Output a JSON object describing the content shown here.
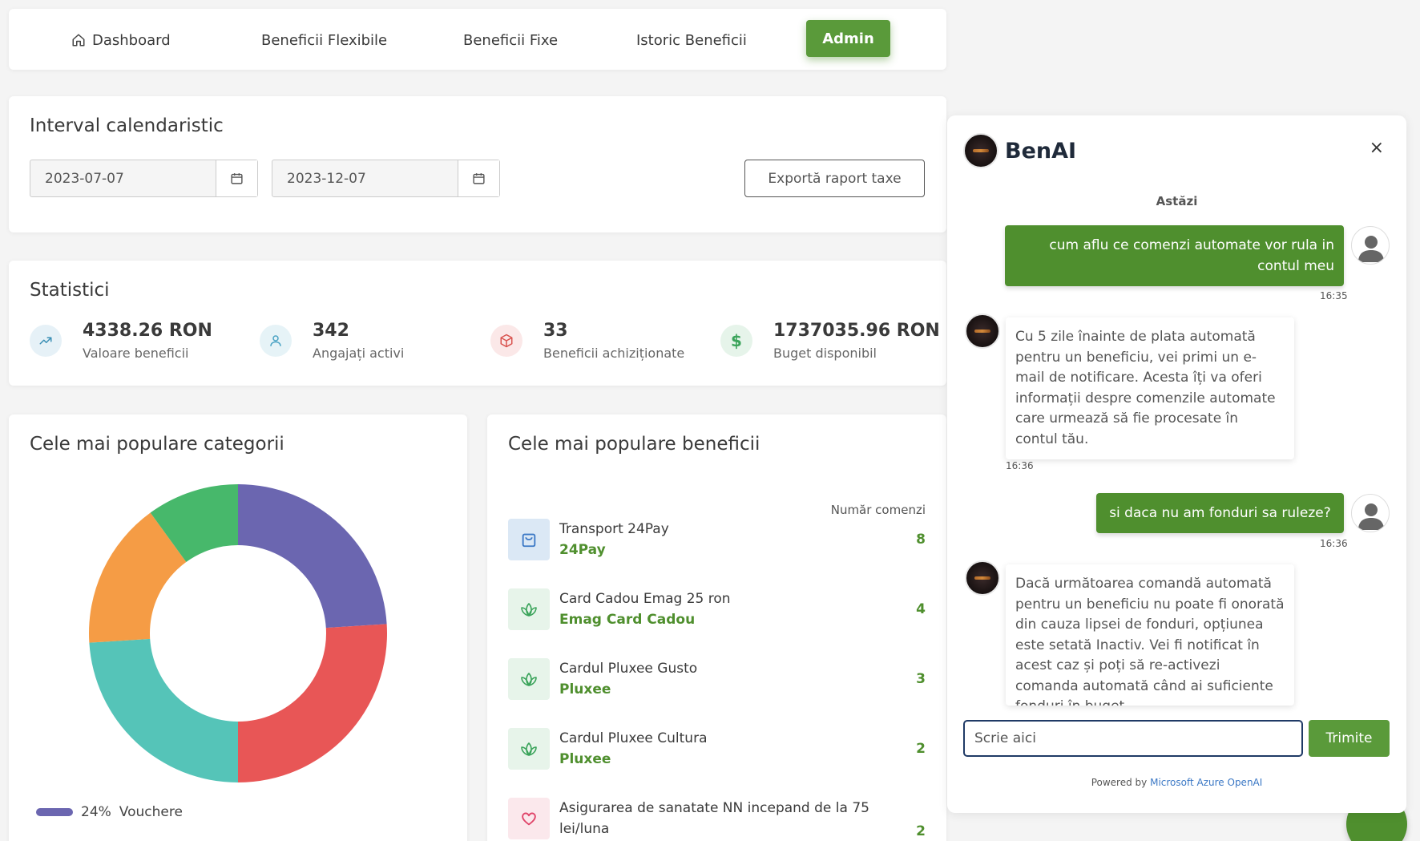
{
  "nav": {
    "items": [
      {
        "label": "Dashboard",
        "icon": "home-icon"
      },
      {
        "label": "Beneficii Flexibile"
      },
      {
        "label": "Beneficii Fixe"
      },
      {
        "label": "Istoric Beneficii"
      }
    ],
    "admin_label": "Admin"
  },
  "interval": {
    "title": "Interval calendaristic",
    "start_date": "2023-07-07",
    "end_date": "2023-12-07",
    "export_label": "Exportă raport taxe"
  },
  "stats": {
    "title": "Statistici",
    "items": [
      {
        "value": "4338.26 RON",
        "label": "Valoare beneficii",
        "icon": "trending-up-icon"
      },
      {
        "value": "342",
        "label": "Angajați activi",
        "icon": "user-icon"
      },
      {
        "value": "33",
        "label": "Beneficii achiziționate",
        "icon": "box-icon"
      },
      {
        "value": "1737035.96 RON",
        "label": "Buget disponibil",
        "icon": "dollar-icon"
      }
    ]
  },
  "categories": {
    "title": "Cele mai populare categorii",
    "legend": [
      {
        "percent": "24%",
        "label": "Vouchere",
        "color": "#6b66b0"
      }
    ]
  },
  "chart_data": {
    "type": "pie",
    "title": "Cele mai populare categorii",
    "slices": [
      {
        "label": "Vouchere",
        "value": 24,
        "color": "#6b66b0"
      },
      {
        "value": 26,
        "color": "#e85656"
      },
      {
        "value": 24,
        "color": "#55c4b8"
      },
      {
        "value": 16,
        "color": "#f59c45"
      },
      {
        "value": 10,
        "color": "#47b86b"
      }
    ]
  },
  "benefits": {
    "title": "Cele mai populare beneficii",
    "count_header": "Număr comenzi",
    "items": [
      {
        "name": "Transport 24Pay",
        "provider": "24Pay",
        "count": "8",
        "icon": "shopping-bag-icon"
      },
      {
        "name": "Card Cadou Emag 25 ron",
        "provider": "Emag Card Cadou",
        "count": "4",
        "icon": "lotus-icon"
      },
      {
        "name": "Cardul Pluxee Gusto",
        "provider": "Pluxee",
        "count": "3",
        "icon": "lotus-icon"
      },
      {
        "name": "Cardul Pluxee Cultura",
        "provider": "Pluxee",
        "count": "2",
        "icon": "lotus-icon"
      },
      {
        "name": "Asigurarea de sanatate NN incepand de la 75 lei/luna",
        "provider": "",
        "count": "2",
        "icon": "heart-icon"
      }
    ]
  },
  "chat": {
    "title": "BenAI",
    "date_label": "Astăzi",
    "messages": [
      {
        "from": "user",
        "text": "cum aflu ce comenzi automate vor rula in contul meu",
        "time": "16:35"
      },
      {
        "from": "bot",
        "text": "Cu 5 zile înainte de plata automată pentru un beneficiu, vei primi un e-mail de notificare. Acesta îți va oferi informații despre comenzile automate care urmează să fie procesate în contul tău.",
        "time": "16:36"
      },
      {
        "from": "user",
        "text": "si daca nu am fonduri sa ruleze?",
        "time": "16:36"
      },
      {
        "from": "bot",
        "text": "Dacă următoarea comandă automată pentru un beneficiu nu poate fi onorată din cauza lipsei de fonduri, opțiunea este setată Inactiv. Vei fi notificat în acest caz și poți să re-activezi comanda automată când ai suficiente fonduri în buget."
      }
    ],
    "input_placeholder": "Scrie aici",
    "send_label": "Trimite",
    "powered_prefix": "Powered by",
    "powered_link": "Microsoft Azure OpenAI"
  },
  "colors": {
    "brand_green": "#5a9a3a",
    "text_green": "#4f8f2e",
    "input_border": "#1f3a66",
    "link_blue": "#3b78c5"
  }
}
